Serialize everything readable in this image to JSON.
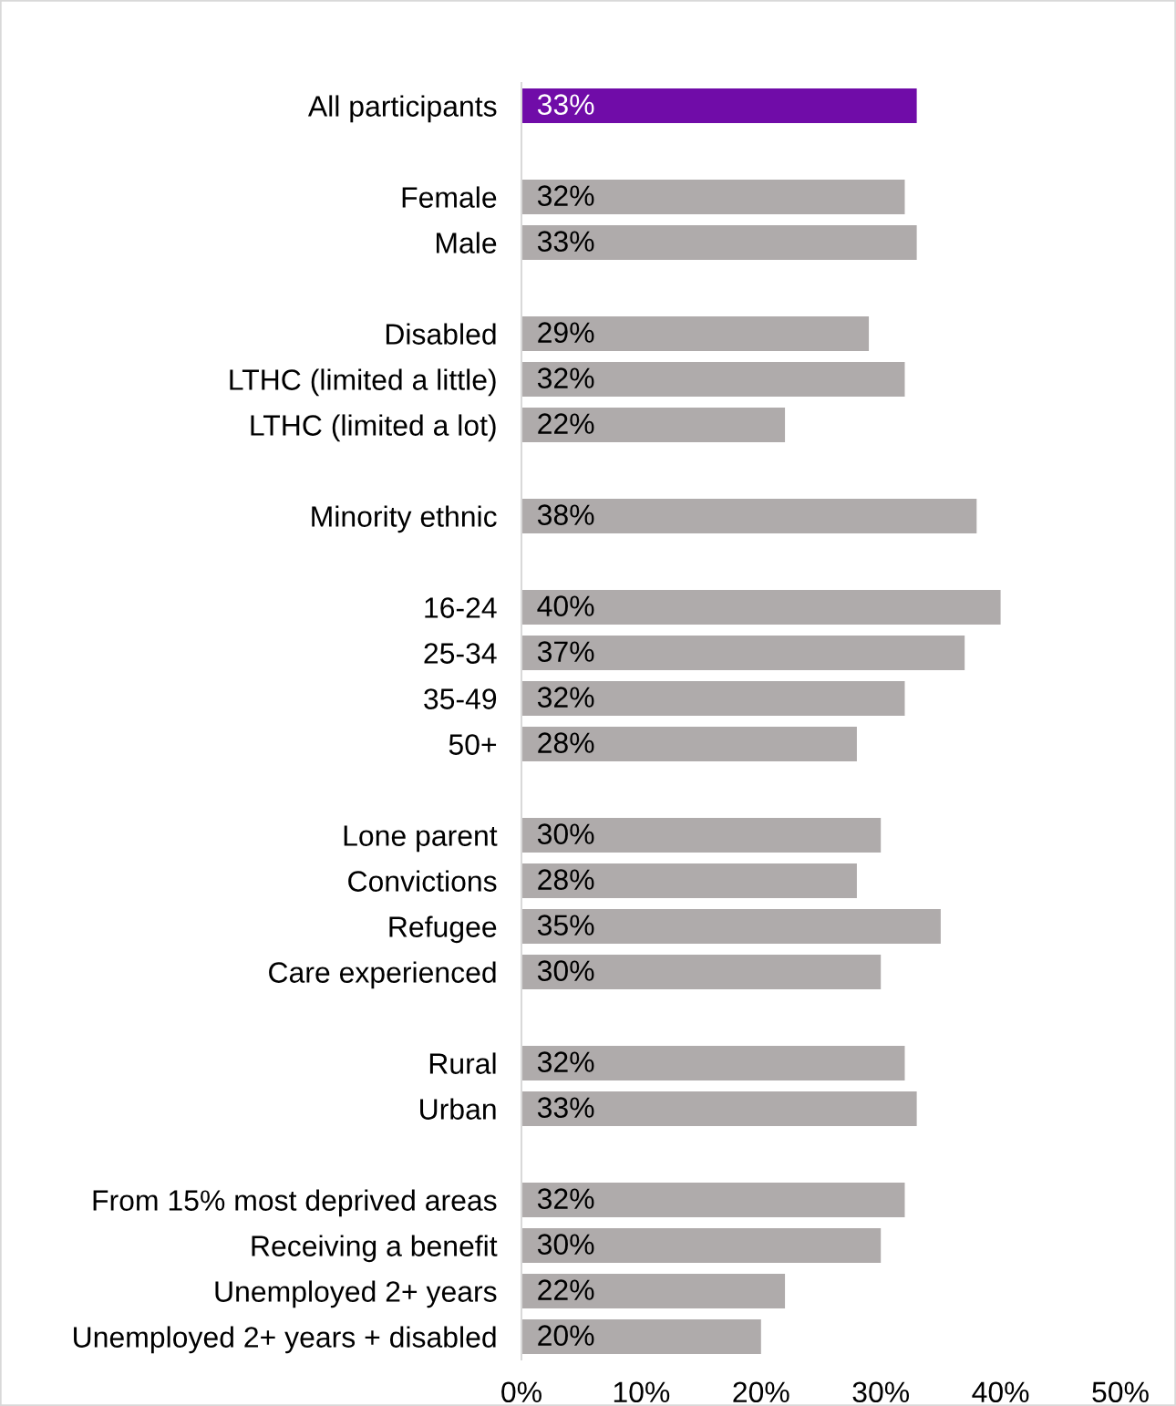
{
  "chart_data": {
    "type": "bar",
    "orientation": "horizontal",
    "categories": [
      "All participants",
      null,
      "Female",
      "Male",
      null,
      "Disabled",
      "LTHC (limited a little)",
      "LTHC (limited a lot)",
      null,
      "Minority ethnic",
      null,
      "16-24",
      "25-34",
      "35-49",
      "50+",
      null,
      "Lone parent",
      "Convictions",
      "Refugee",
      "Care experienced",
      null,
      "Rural",
      "Urban",
      null,
      "From 15% most deprived areas",
      "Receiving a benefit",
      "Unemployed 2+ years",
      "Unemployed 2+ years + disabled"
    ],
    "values": [
      33,
      null,
      32,
      33,
      null,
      29,
      32,
      22,
      null,
      38,
      null,
      40,
      37,
      32,
      28,
      null,
      30,
      28,
      35,
      30,
      null,
      32,
      33,
      null,
      32,
      30,
      22,
      20
    ],
    "colors": [
      "#700ca8",
      null,
      "#afabab",
      "#afabab",
      null,
      "#afabab",
      "#afabab",
      "#afabab",
      null,
      "#afabab",
      null,
      "#afabab",
      "#afabab",
      "#afabab",
      "#afabab",
      null,
      "#afabab",
      "#afabab",
      "#afabab",
      "#afabab",
      null,
      "#afabab",
      "#afabab",
      null,
      "#afabab",
      "#afabab",
      "#afabab",
      "#afabab"
    ],
    "value_labels": [
      "33%",
      null,
      "32%",
      "33%",
      null,
      "29%",
      "32%",
      "22%",
      null,
      "38%",
      null,
      "40%",
      "37%",
      "32%",
      "28%",
      null,
      "30%",
      "28%",
      "35%",
      "30%",
      null,
      "32%",
      "33%",
      null,
      "32%",
      "30%",
      "22%",
      "20%"
    ],
    "xlim": [
      0,
      50
    ],
    "xticks": [
      {
        "value": 0,
        "label": "0%"
      },
      {
        "value": 10,
        "label": "10%"
      },
      {
        "value": 20,
        "label": "20%"
      },
      {
        "value": 30,
        "label": "30%"
      },
      {
        "value": 40,
        "label": "40%"
      },
      {
        "value": 50,
        "label": "50%"
      }
    ],
    "grid": false
  }
}
